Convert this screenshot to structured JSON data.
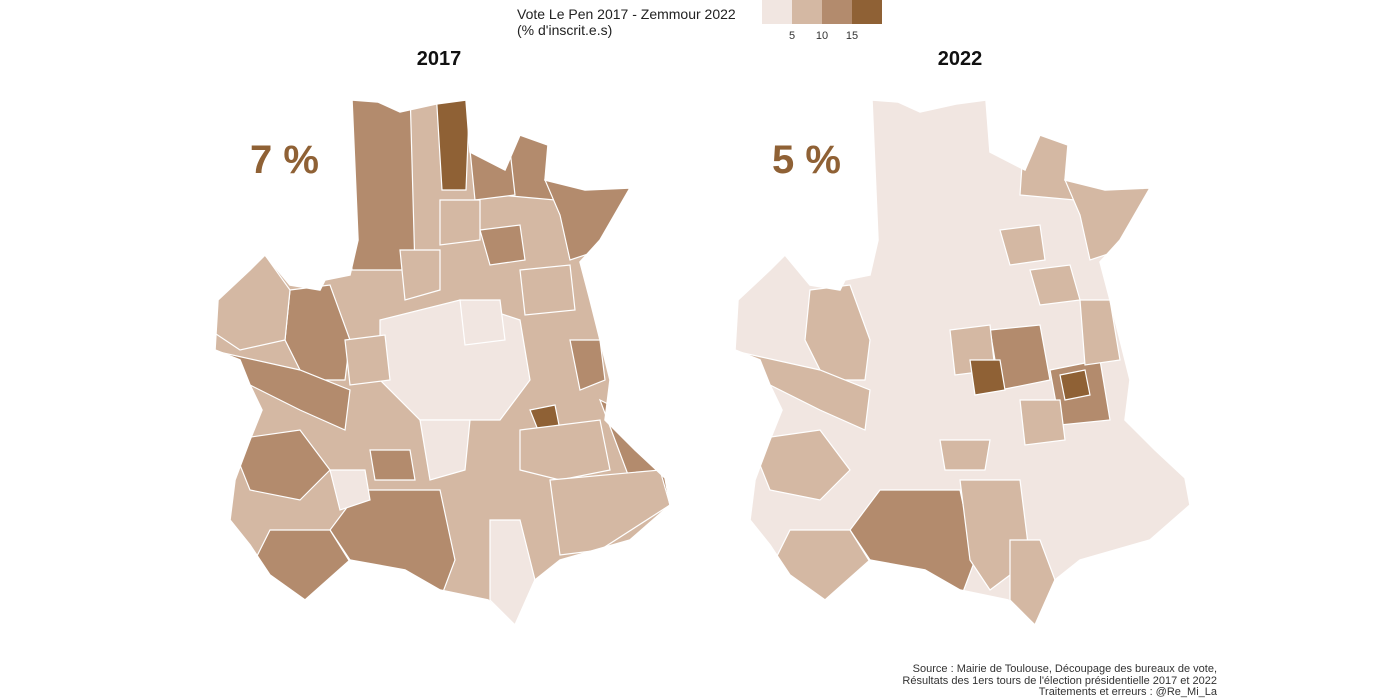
{
  "legend": {
    "title_line1": "Vote Le Pen 2017 - Zemmour 2022",
    "title_line2": "(% d'inscrit.e.s)",
    "colors": [
      "#f1e6e1",
      "#d4b8a3",
      "#b38b6d",
      "#8f6135"
    ],
    "ticks": [
      "5",
      "10",
      "15"
    ]
  },
  "panels": [
    {
      "title": "2017",
      "overall_value": "7 %"
    },
    {
      "title": "2022",
      "overall_value": "5 %"
    }
  ],
  "caption": {
    "line1": "Source : Mairie de Toulouse, Découpage des bureaux de vote,",
    "line2": "Résultats des 1ers tours de l'élection présidentielle 2017 et 2022",
    "line3": "Traitements et erreurs : @Re_Mi_La"
  }
}
